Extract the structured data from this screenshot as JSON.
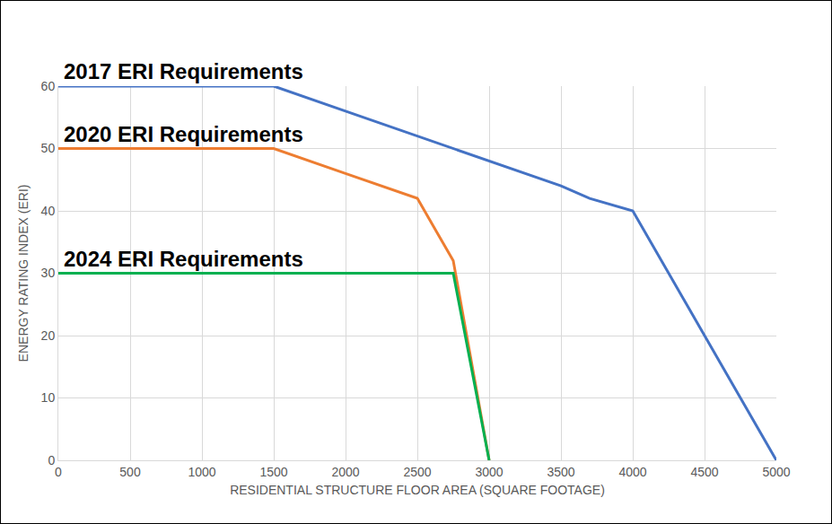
{
  "chart_data": {
    "type": "line",
    "x_label": "RESIDENTIAL STRUCTURE FLOOR AREA (SQUARE FOOTAGE)",
    "y_label": "ENERGY RATING INDEX (ERI)",
    "xlim": [
      0,
      5000
    ],
    "xticks": [
      0,
      500,
      1000,
      1500,
      2000,
      2500,
      3000,
      3500,
      4000,
      4500,
      5000
    ],
    "ylim": [
      0,
      60
    ],
    "yticks": [
      0,
      10,
      20,
      30,
      40,
      50,
      60
    ],
    "grid": true,
    "series": [
      {
        "name": "2017 ERI Requirements",
        "color": "#4472c4",
        "x": [
          0,
          1500,
          2000,
          2500,
          3000,
          3500,
          3700,
          4000,
          4500,
          5000
        ],
        "values": [
          60,
          60,
          56,
          52,
          48,
          44,
          42,
          40,
          20,
          0
        ]
      },
      {
        "name": "2020 ERI Requirements",
        "color": "#ed7d31",
        "x": [
          0,
          1500,
          2000,
          2500,
          2750,
          3000
        ],
        "values": [
          50,
          50,
          46,
          42,
          32,
          0
        ]
      },
      {
        "name": "2024 ERI Requirements",
        "color": "#00b050",
        "x": [
          0,
          2750,
          3000
        ],
        "values": [
          30,
          30,
          0
        ]
      }
    ]
  }
}
